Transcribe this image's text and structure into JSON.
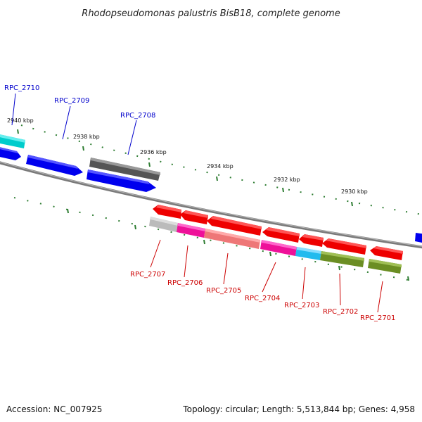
{
  "title": "Rhodopseudomonas palustris BisB18, complete genome",
  "footer": {
    "accession": "Accession: NC_007925",
    "stats": "Topology: circular; Length: 5,513,844 bp; Genes: 4,958"
  },
  "kbp_labels": [
    "2940 kbp",
    "2938 kbp",
    "2936 kbp",
    "2934 kbp",
    "2932 kbp",
    "2930 kbp"
  ],
  "top_gene_labels": [
    "RPC_2710",
    "RPC_2709",
    "RPC_2708"
  ],
  "bottom_gene_labels": [
    "RPC_2707",
    "RPC_2706",
    "RPC_2705",
    "RPC_2704",
    "RPC_2703",
    "RPC_2702",
    "RPC_2701"
  ],
  "colors": {
    "backbone": "#808080",
    "tick": "#2e7d32",
    "cds_top": "#0000ee",
    "cds_bottom": "#ee0000",
    "cyan": "#00cccc",
    "grey_dark": "#555555",
    "grey_light": "#bbbbbb",
    "magenta": "#ee1199",
    "salmon": "#ee7777",
    "sky": "#22bbee",
    "olive": "#6b8e23"
  }
}
